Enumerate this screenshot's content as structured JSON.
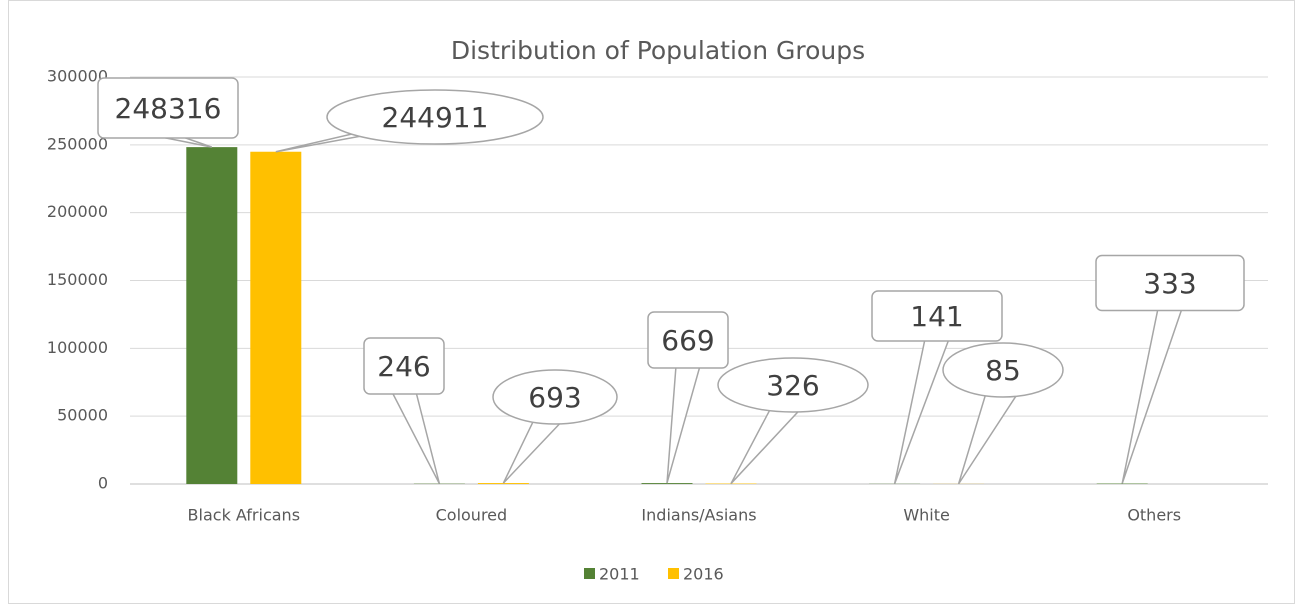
{
  "chart_data": {
    "type": "bar",
    "title": "Distribution of Population Groups",
    "categories": [
      "Black Africans",
      "Coloured",
      "Indians/Asians",
      "White",
      "Others"
    ],
    "series": [
      {
        "name": "2011",
        "color": "#548235",
        "values": [
          248316,
          246,
          669,
          141,
          333
        ]
      },
      {
        "name": "2016",
        "color": "#ffc000",
        "values": [
          244911,
          693,
          326,
          85,
          null
        ]
      }
    ],
    "ylim": [
      0,
      300000
    ],
    "yticks": [
      0,
      50000,
      100000,
      150000,
      200000,
      250000,
      300000
    ],
    "grid": true,
    "legend": "bottom"
  }
}
